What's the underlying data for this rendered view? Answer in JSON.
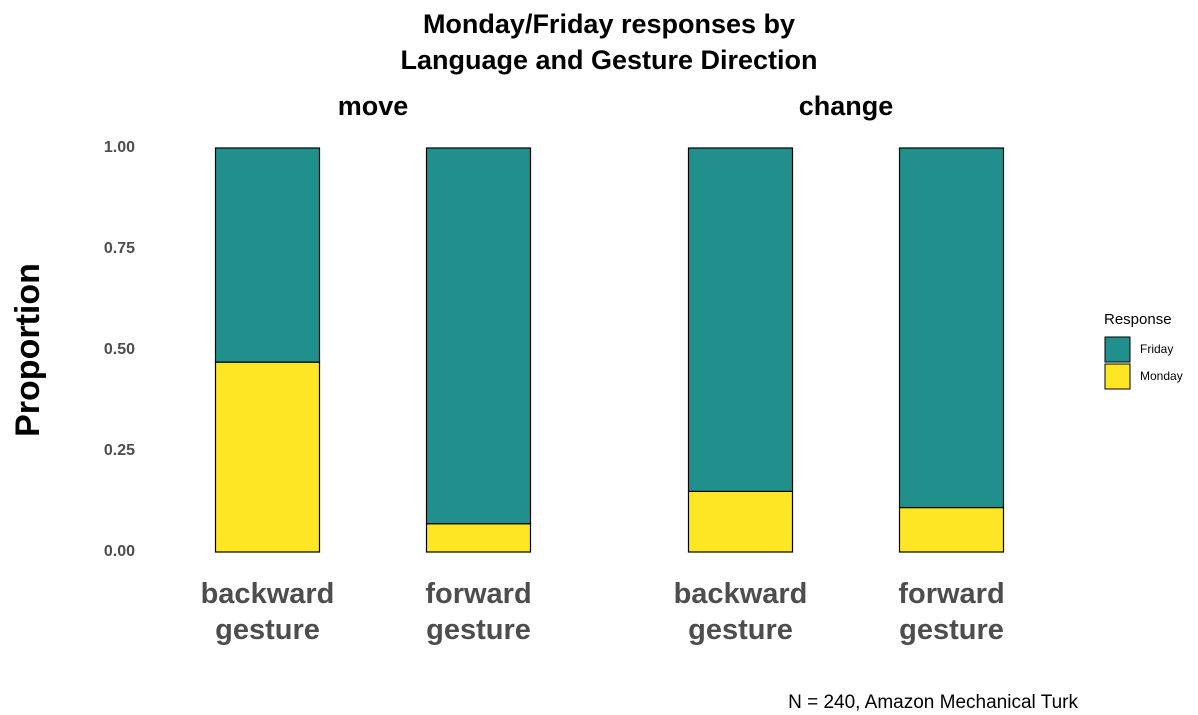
{
  "chart_data": {
    "type": "bar",
    "stacked": true,
    "title": "Monday/Friday responses by\nLanguage and Gesture Direction",
    "ylabel": "Proportion",
    "caption": "N = 240, Amazon Mechanical Turk",
    "legend_title": "Response",
    "ylim": [
      0,
      1
    ],
    "yticks": [
      {
        "value": 0,
        "label": "0.00"
      },
      {
        "value": 0.25,
        "label": "0.25"
      },
      {
        "value": 0.5,
        "label": "0.50"
      },
      {
        "value": 0.75,
        "label": "0.75"
      },
      {
        "value": 1,
        "label": "1.00"
      }
    ],
    "facets": [
      {
        "title": "move",
        "categories": [
          "backward\ngesture",
          "forward\ngesture"
        ],
        "series": [
          {
            "name": "Friday",
            "color": "#21908c",
            "values": [
              0.53,
              0.93
            ]
          },
          {
            "name": "Monday",
            "color": "#fde725",
            "values": [
              0.47,
              0.07
            ]
          }
        ]
      },
      {
        "title": "change",
        "categories": [
          "backward\ngesture",
          "forward\ngesture"
        ],
        "series": [
          {
            "name": "Friday",
            "color": "#21908c",
            "values": [
              0.85,
              0.89
            ]
          },
          {
            "name": "Monday",
            "color": "#fde725",
            "values": [
              0.15,
              0.11
            ]
          }
        ]
      }
    ]
  }
}
